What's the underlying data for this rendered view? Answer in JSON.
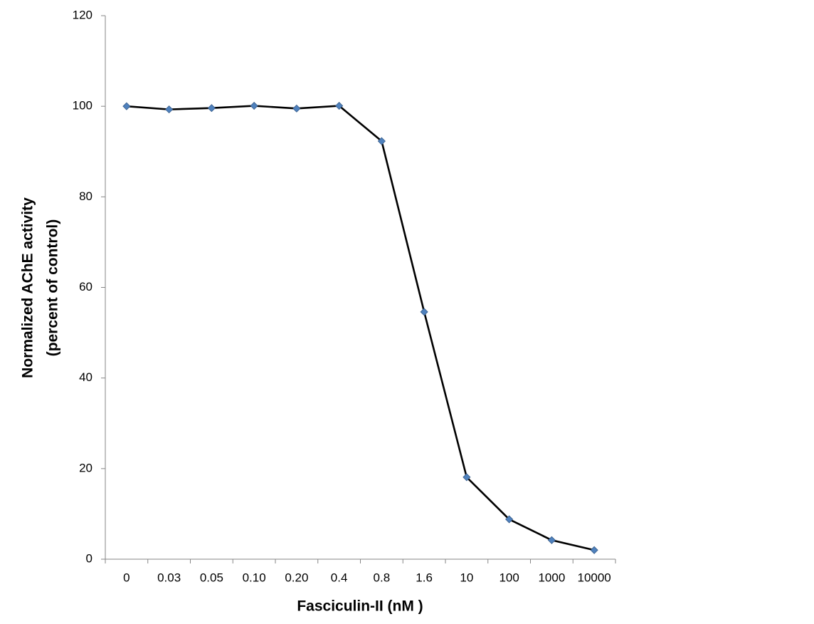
{
  "chart_data": {
    "type": "line",
    "x_label": "Fasciculin-II  (nM )",
    "y_label": [
      "Normalized AChE activity",
      "(percent of control)"
    ],
    "categories": [
      "0",
      "0.03",
      "0.05",
      "0.10",
      "0.20",
      "0.4",
      "0.8",
      "1.6",
      "10",
      "100",
      "1000",
      "10000"
    ],
    "series": [
      {
        "name": "AChE activity",
        "color": "#4f81bd",
        "line_color": "#000000",
        "values": [
          100,
          99.3,
          99.6,
          100.1,
          99.5,
          100.1,
          92.3,
          54.6,
          18.1,
          8.8,
          4.2,
          2.0
        ]
      }
    ],
    "ylim": [
      0,
      120
    ],
    "yticks": [
      0,
      20,
      40,
      60,
      80,
      100,
      120
    ],
    "grid": false
  }
}
